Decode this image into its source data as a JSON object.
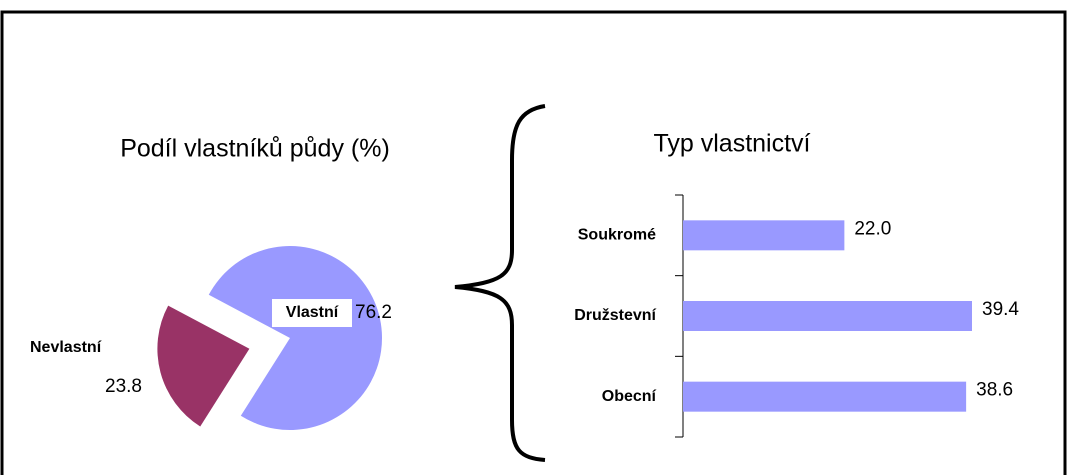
{
  "chart_data": [
    {
      "type": "pie",
      "title": "Podíl vlastníků půdy (%)",
      "categories": [
        "Vlastní",
        "Nevlastní"
      ],
      "values": [
        76.2,
        23.8
      ],
      "colors": [
        "#9999ff",
        "#993366"
      ]
    },
    {
      "type": "hbar",
      "title": "Typ vlastnictví",
      "categories": [
        "Soukromé",
        "Družstevní",
        "Obecní"
      ],
      "values": [
        22.0,
        39.4,
        38.6
      ],
      "value_labels": [
        "22.0",
        "39.4",
        "38.6"
      ],
      "color": "#9999ff"
    }
  ]
}
